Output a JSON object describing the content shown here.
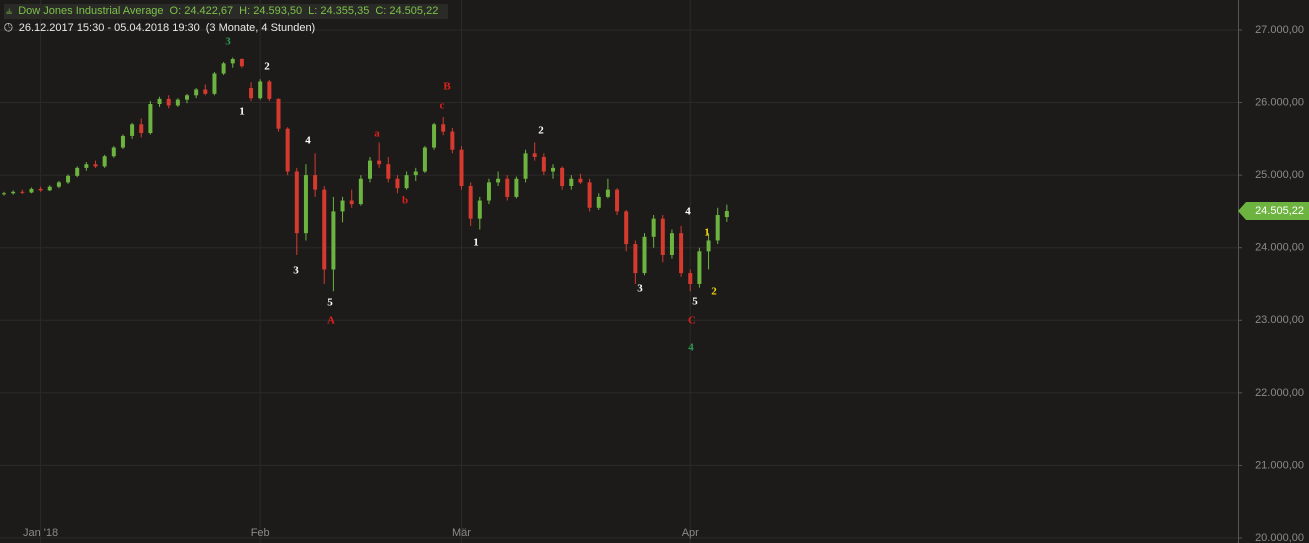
{
  "chart_data": {
    "type": "candlestick",
    "title": "Dow Jones Industrial Average",
    "header": {
      "open": "O: 24.422,67",
      "high": "H: 24.593,50",
      "low": "L: 24.355,35",
      "close": "C: 24.505,22",
      "range": "26.12.2017 15:30 - 05.04.2018 19:30",
      "span": "(3 Monate, 4 Stunden)"
    },
    "up_color": "#6db33f",
    "down_color": "#d63a2f",
    "grid": true,
    "ylim": [
      19931,
      27413
    ],
    "yticks": [
      {
        "value": 20000,
        "label": "20.000,00"
      },
      {
        "value": 21000,
        "label": "21.000,00"
      },
      {
        "value": 22000,
        "label": "22.000,00"
      },
      {
        "value": 23000,
        "label": "23.000,00"
      },
      {
        "value": 24000,
        "label": "24.000,00"
      },
      {
        "value": 25000,
        "label": "25.000,00"
      },
      {
        "value": 26000,
        "label": "26.000,00"
      },
      {
        "value": 27000,
        "label": "27.000,00"
      }
    ],
    "last_price": {
      "value": 24505.22,
      "label": "24.505,22"
    },
    "categories": [
      null,
      null,
      null,
      null,
      "Jan '18",
      null,
      null,
      null,
      null,
      null,
      null,
      null,
      null,
      null,
      null,
      null,
      null,
      null,
      null,
      null,
      null,
      null,
      null,
      null,
      null,
      null,
      null,
      null,
      "Feb",
      null,
      null,
      null,
      null,
      null,
      null,
      null,
      null,
      null,
      null,
      null,
      null,
      null,
      null,
      null,
      null,
      null,
      null,
      null,
      null,
      null,
      "Mär",
      null,
      null,
      null,
      null,
      null,
      null,
      null,
      null,
      null,
      null,
      null,
      null,
      null,
      null,
      null,
      null,
      null,
      null,
      null,
      null,
      null,
      null,
      null,
      null,
      "Apr",
      null,
      null,
      null,
      null
    ],
    "open": [
      24740,
      24750,
      24770,
      24760,
      24810,
      24790,
      24840,
      24900,
      24990,
      25100,
      25150,
      25120,
      25260,
      25380,
      25540,
      25700,
      25580,
      25980,
      26050,
      25960,
      26040,
      26100,
      26180,
      26120,
      26400,
      26540,
      26600,
      26200,
      26060,
      26290,
      26050,
      25640,
      25050,
      24200,
      25000,
      24800,
      23700,
      24500,
      24650,
      24600,
      24950,
      25200,
      25150,
      24950,
      24820,
      25000,
      25050,
      25380,
      25700,
      25600,
      25350,
      24850,
      24400,
      24650,
      24900,
      24950,
      24700,
      24950,
      25300,
      25250,
      25050,
      25100,
      24850,
      24950,
      24900,
      24550,
      24700,
      24800,
      24500,
      24050,
      23650,
      24150,
      24400,
      23900,
      24200,
      23650,
      23500,
      23950,
      24100,
      24422.67
    ],
    "high": [
      24770,
      24790,
      24800,
      24830,
      24840,
      24860,
      24920,
      25010,
      25120,
      25180,
      25200,
      25280,
      25400,
      25560,
      25720,
      25780,
      26020,
      26080,
      26100,
      26060,
      26120,
      26200,
      26250,
      26420,
      26560,
      26620,
      26610,
      26280,
      26320,
      26310,
      26060,
      25660,
      25100,
      25150,
      25300,
      24850,
      24700,
      24700,
      24800,
      25000,
      25250,
      25450,
      25250,
      25000,
      25050,
      25100,
      25400,
      25720,
      25800,
      25650,
      25400,
      24900,
      24700,
      24950,
      25050,
      25000,
      24980,
      25350,
      25450,
      25300,
      25150,
      25120,
      25000,
      25020,
      24950,
      24750,
      24950,
      24820,
      24520,
      24100,
      24200,
      24450,
      24450,
      24250,
      24300,
      23700,
      24000,
      24200,
      24550,
      24593.5
    ],
    "low": [
      24720,
      24730,
      24740,
      24750,
      24770,
      24780,
      24820,
      24880,
      24970,
      25060,
      25100,
      25100,
      25240,
      25360,
      25500,
      25520,
      25560,
      25940,
      25920,
      25940,
      25990,
      26060,
      26100,
      26100,
      26380,
      26480,
      26480,
      26020,
      26040,
      26020,
      25600,
      25000,
      23900,
      24100,
      24700,
      23500,
      23400,
      24350,
      24550,
      24580,
      24900,
      25100,
      24900,
      24750,
      24800,
      24920,
      25030,
      25350,
      25550,
      25300,
      24800,
      24300,
      24250,
      24600,
      24850,
      24650,
      24680,
      24900,
      25200,
      25000,
      24950,
      24800,
      24800,
      24880,
      24500,
      24520,
      24680,
      24450,
      23950,
      23500,
      23620,
      24000,
      23800,
      23850,
      23600,
      23400,
      23450,
      23700,
      24050,
      24355.35
    ],
    "close": [
      24750,
      24770,
      24760,
      24810,
      24790,
      24840,
      24900,
      24990,
      25100,
      25150,
      25120,
      25260,
      25380,
      25540,
      25700,
      25580,
      25980,
      26050,
      25960,
      26040,
      26100,
      26180,
      26120,
      26400,
      26540,
      26600,
      26500,
      26060,
      26290,
      26050,
      25640,
      25050,
      24200,
      25000,
      24800,
      23700,
      24500,
      24650,
      24600,
      24950,
      25200,
      25150,
      24950,
      24820,
      25000,
      25050,
      25380,
      25700,
      25600,
      25350,
      24850,
      24400,
      24650,
      24900,
      24950,
      24700,
      24950,
      25300,
      25250,
      25050,
      25100,
      24850,
      24950,
      24900,
      24550,
      24700,
      24800,
      24500,
      24050,
      23650,
      24150,
      24400,
      23900,
      24200,
      23650,
      23500,
      23950,
      24100,
      24450,
      24505.22
    ],
    "annotations": [
      {
        "text": "3",
        "color": "#2e9a4f"
      },
      {
        "text": "1",
        "color": "#ffffff"
      },
      {
        "text": "2",
        "color": "#ffffff"
      },
      {
        "text": "4",
        "color": "#ffffff"
      },
      {
        "text": "3",
        "color": "#ffffff"
      },
      {
        "text": "5",
        "color": "#ffffff"
      },
      {
        "text": "A",
        "color": "#e0201c"
      },
      {
        "text": "a",
        "color": "#e0201c"
      },
      {
        "text": "b",
        "color": "#e0201c"
      },
      {
        "text": "B",
        "color": "#e0201c"
      },
      {
        "text": "c",
        "color": "#e0201c"
      },
      {
        "text": "1",
        "color": "#ffffff"
      },
      {
        "text": "2",
        "color": "#ffffff"
      },
      {
        "text": "3",
        "color": "#ffffff"
      },
      {
        "text": "4",
        "color": "#ffffff"
      },
      {
        "text": "5",
        "color": "#ffffff"
      },
      {
        "text": "1",
        "color": "#f5d800"
      },
      {
        "text": "2",
        "color": "#f5d800"
      },
      {
        "text": "C",
        "color": "#e0201c"
      },
      {
        "text": "4",
        "color": "#2e9a4f"
      }
    ]
  }
}
